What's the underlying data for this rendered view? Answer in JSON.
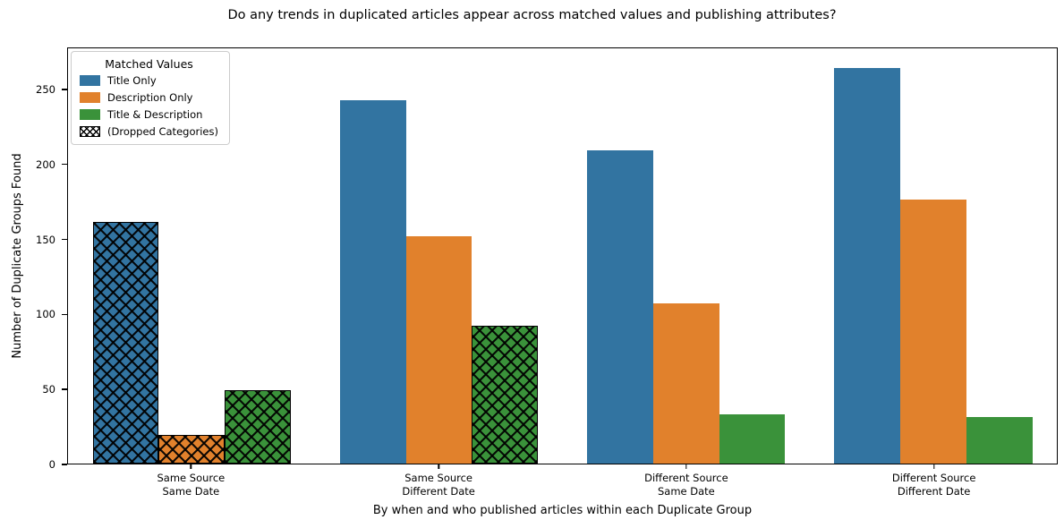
{
  "chart_data": {
    "type": "bar",
    "title": "Do any trends in duplicated articles appear across matched values and publishing attributes?",
    "xlabel": "By when and who published articles within each Duplicate Group",
    "ylabel": "Number of Duplicate Groups Found",
    "categories": [
      [
        "Same Source",
        "Same Date"
      ],
      [
        "Same Source",
        "Different Date"
      ],
      [
        "Different Source",
        "Same Date"
      ],
      [
        "Different Source",
        "Different Date"
      ]
    ],
    "series": [
      {
        "name": "Title Only",
        "color": "#3274a1",
        "values": [
          162,
          243,
          210,
          265
        ],
        "hatched": [
          true,
          false,
          false,
          false
        ]
      },
      {
        "name": "Description Only",
        "color": "#e1812c",
        "values": [
          19,
          152,
          107,
          177
        ],
        "hatched": [
          true,
          false,
          false,
          false
        ]
      },
      {
        "name": "Title & Description",
        "color": "#3a923a",
        "values": [
          49,
          92,
          33,
          31
        ],
        "hatched": [
          true,
          true,
          false,
          false
        ]
      }
    ],
    "legend": {
      "title": "Matched Values",
      "dropped_label": "(Dropped Categories)",
      "position": "upper left"
    },
    "yticks": [
      0,
      50,
      100,
      150,
      200,
      250
    ],
    "ylim": [
      0,
      278
    ],
    "grid": false,
    "hatch_meaning": "dropped category"
  }
}
